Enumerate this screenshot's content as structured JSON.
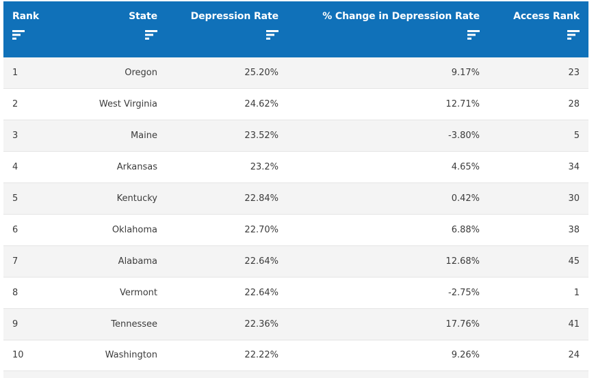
{
  "table": {
    "headers": [
      "Rank",
      "State",
      "Depression Rate",
      "% Change in Depression Rate",
      "Access Rank"
    ],
    "rows": [
      [
        "1",
        "Oregon",
        "25.20%",
        "9.17%",
        "23"
      ],
      [
        "2",
        "West Virginia",
        "24.62%",
        "12.71%",
        "28"
      ],
      [
        "3",
        "Maine",
        "23.52%",
        "-3.80%",
        "5"
      ],
      [
        "4",
        "Arkansas",
        "23.2%",
        "4.65%",
        "34"
      ],
      [
        "5",
        "Kentucky",
        "22.84%",
        "0.42%",
        "30"
      ],
      [
        "6",
        "Oklahoma",
        "22.70%",
        "6.88%",
        "38"
      ],
      [
        "7",
        "Alabama",
        "22.64%",
        "12.68%",
        "45"
      ],
      [
        "8",
        "Vermont",
        "22.64%",
        "-2.75%",
        "1"
      ],
      [
        "9",
        "Tennessee",
        "22.36%",
        "17.76%",
        "41"
      ],
      [
        "10",
        "Washington",
        "22.22%",
        "9.26%",
        "24"
      ]
    ]
  },
  "colors": {
    "header_bg": "#1071b9",
    "header_text": "#ffffff",
    "row_alt": "#f4f4f4",
    "row_text": "#3b3b3b"
  },
  "icons": {
    "sort": "sort-icon"
  }
}
